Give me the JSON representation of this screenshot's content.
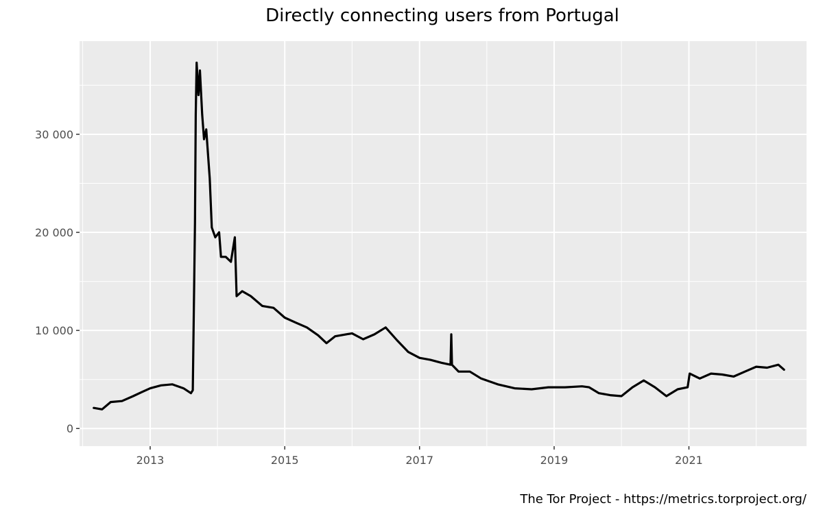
{
  "chart_data": {
    "type": "line",
    "title": "Directly connecting users from Portugal",
    "caption": "The Tor Project - https://metrics.torproject.org/",
    "xlabel": "",
    "ylabel": "",
    "x_range": [
      "2011-12-15",
      "2022-10-01"
    ],
    "ylim": [
      -1800,
      39500
    ],
    "x_ticks": [
      {
        "date": "2013-01-01",
        "label": "2013"
      },
      {
        "date": "2015-01-01",
        "label": "2015"
      },
      {
        "date": "2017-01-01",
        "label": "2017"
      },
      {
        "date": "2019-01-01",
        "label": "2019"
      },
      {
        "date": "2021-01-01",
        "label": "2021"
      }
    ],
    "y_ticks": [
      {
        "value": 0,
        "label": "0"
      },
      {
        "value": 10000,
        "label": "10 000"
      },
      {
        "value": 20000,
        "label": "20 000"
      },
      {
        "value": 30000,
        "label": "30 000"
      }
    ],
    "grid": true,
    "colors": {
      "panel": "#ebebeb",
      "grid": "#ffffff",
      "line": "#000000"
    },
    "series": [
      {
        "values": [
          [
            "2012-03-01",
            2100
          ],
          [
            "2012-04-15",
            1950
          ],
          [
            "2012-06-01",
            2700
          ],
          [
            "2012-08-01",
            2800
          ],
          [
            "2012-10-01",
            3300
          ],
          [
            "2012-11-15",
            3700
          ],
          [
            "2013-01-01",
            4100
          ],
          [
            "2013-03-01",
            4400
          ],
          [
            "2013-05-01",
            4500
          ],
          [
            "2013-07-01",
            4100
          ],
          [
            "2013-08-10",
            3600
          ],
          [
            "2013-08-20",
            3900
          ],
          [
            "2013-09-01",
            21000
          ],
          [
            "2013-09-05",
            32000
          ],
          [
            "2013-09-10",
            37300
          ],
          [
            "2013-09-20",
            34000
          ],
          [
            "2013-09-28",
            36500
          ],
          [
            "2013-10-10",
            32000
          ],
          [
            "2013-10-20",
            29500
          ],
          [
            "2013-11-01",
            30500
          ],
          [
            "2013-11-20",
            25500
          ],
          [
            "2013-12-01",
            20500
          ],
          [
            "2013-12-20",
            19500
          ],
          [
            "2014-01-10",
            20000
          ],
          [
            "2014-01-20",
            17500
          ],
          [
            "2014-02-15",
            17500
          ],
          [
            "2014-03-15",
            17000
          ],
          [
            "2014-04-05",
            19500
          ],
          [
            "2014-04-15",
            13500
          ],
          [
            "2014-05-15",
            14000
          ],
          [
            "2014-07-01",
            13500
          ],
          [
            "2014-09-01",
            12500
          ],
          [
            "2014-11-01",
            12300
          ],
          [
            "2015-01-01",
            11300
          ],
          [
            "2015-03-01",
            10800
          ],
          [
            "2015-05-01",
            10300
          ],
          [
            "2015-07-01",
            9500
          ],
          [
            "2015-08-15",
            8700
          ],
          [
            "2015-10-01",
            9400
          ],
          [
            "2016-01-01",
            9700
          ],
          [
            "2016-03-01",
            9100
          ],
          [
            "2016-05-01",
            9600
          ],
          [
            "2016-07-01",
            10300
          ],
          [
            "2016-09-01",
            9000
          ],
          [
            "2016-11-01",
            7800
          ],
          [
            "2017-01-01",
            7200
          ],
          [
            "2017-03-01",
            7000
          ],
          [
            "2017-05-01",
            6700
          ],
          [
            "2017-06-18",
            6500
          ],
          [
            "2017-06-22",
            9600
          ],
          [
            "2017-06-26",
            6500
          ],
          [
            "2017-08-01",
            5800
          ],
          [
            "2017-10-01",
            5800
          ],
          [
            "2017-12-01",
            5100
          ],
          [
            "2018-03-01",
            4500
          ],
          [
            "2018-06-01",
            4100
          ],
          [
            "2018-09-01",
            4000
          ],
          [
            "2018-12-01",
            4200
          ],
          [
            "2019-03-01",
            4200
          ],
          [
            "2019-06-01",
            4300
          ],
          [
            "2019-07-10",
            4200
          ],
          [
            "2019-09-01",
            3600
          ],
          [
            "2019-11-01",
            3400
          ],
          [
            "2020-01-01",
            3300
          ],
          [
            "2020-03-01",
            4200
          ],
          [
            "2020-05-01",
            4900
          ],
          [
            "2020-07-01",
            4200
          ],
          [
            "2020-09-01",
            3300
          ],
          [
            "2020-11-01",
            4000
          ],
          [
            "2020-12-25",
            4200
          ],
          [
            "2021-01-05",
            5600
          ],
          [
            "2021-03-01",
            5100
          ],
          [
            "2021-05-01",
            5600
          ],
          [
            "2021-07-01",
            5500
          ],
          [
            "2021-09-01",
            5300
          ],
          [
            "2021-11-01",
            5800
          ],
          [
            "2022-01-01",
            6300
          ],
          [
            "2022-03-01",
            6200
          ],
          [
            "2022-05-01",
            6500
          ],
          [
            "2022-06-01",
            6000
          ]
        ]
      }
    ]
  }
}
